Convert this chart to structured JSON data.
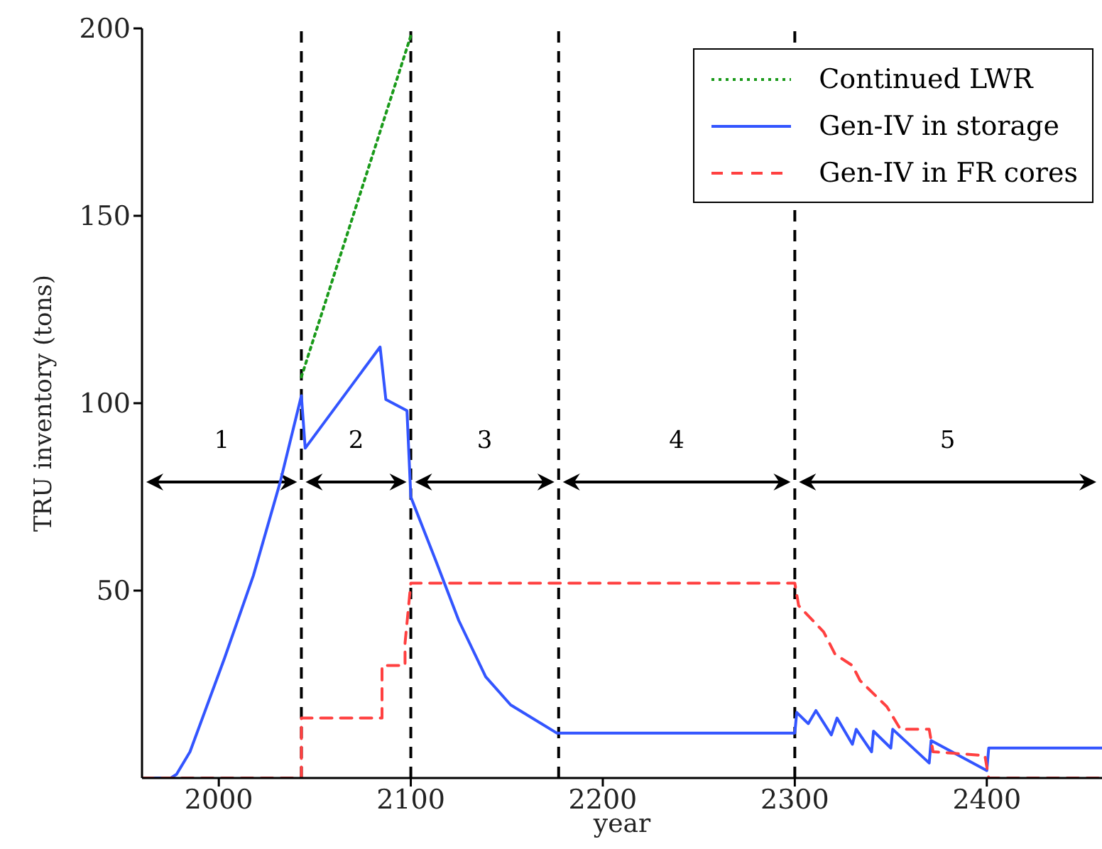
{
  "chart_data": {
    "type": "line",
    "xlabel": "year",
    "ylabel": "TRU inventory (tons)",
    "xlim": [
      1960,
      2460
    ],
    "ylim": [
      0,
      200
    ],
    "xticks": [
      2000,
      2100,
      2200,
      2300,
      2400
    ],
    "yticks": [
      50,
      100,
      150,
      200
    ],
    "grid": false,
    "legend": "top right",
    "marker": "none",
    "series": [
      {
        "name": "Continued LWR",
        "color": "#1a9a1a",
        "line_style": "dotted",
        "x": [
          2043,
          2100
        ],
        "values": [
          107,
          198
        ]
      },
      {
        "name": "Gen-IV in storage",
        "color": "#3355ff",
        "line_style": "solid",
        "x": [
          1960,
          1975,
          1978,
          1985,
          2003,
          2018,
          2032,
          2043,
          2045,
          2084,
          2087,
          2098,
          2100,
          2113,
          2125,
          2139,
          2152,
          2176,
          2300,
          2301,
          2307,
          2311,
          2319,
          2322,
          2330,
          2332,
          2340,
          2341,
          2350,
          2351,
          2370,
          2371,
          2400,
          2401,
          2460
        ],
        "values": [
          0,
          0,
          1,
          7,
          32,
          54,
          79,
          102,
          88,
          115,
          101,
          98,
          75,
          58,
          42,
          27,
          19.5,
          12,
          12,
          17.5,
          14.5,
          18,
          11.5,
          16,
          9,
          13,
          7,
          12.5,
          8,
          13,
          4,
          10,
          2,
          8,
          8
        ]
      },
      {
        "name": "Gen-IV in FR cores",
        "color": "#ff4040",
        "line_style": "dashed",
        "x": [
          1960,
          2043,
          2043,
          2085,
          2085,
          2097,
          2097,
          2100,
          2300,
          2302,
          2315,
          2321,
          2330,
          2334,
          2348,
          2355,
          2370,
          2372,
          2399,
          2401,
          2460
        ],
        "values": [
          0,
          0,
          16,
          16,
          30,
          30,
          36,
          52,
          52,
          46,
          39,
          33,
          30,
          26,
          19,
          13,
          13,
          7,
          6,
          0,
          0
        ]
      }
    ],
    "ref_lines": [
      {
        "axis": "x",
        "value": 2043,
        "color": "#000000",
        "line_style": "dashed"
      },
      {
        "axis": "x",
        "value": 2100,
        "color": "#000000",
        "line_style": "dashed"
      },
      {
        "axis": "x",
        "value": 2177,
        "color": "#000000",
        "line_style": "dashed"
      },
      {
        "axis": "x",
        "value": 2300,
        "color": "#000000",
        "line_style": "dashed"
      }
    ],
    "annotations": [
      "1",
      "2",
      "3",
      "4",
      "5"
    ]
  }
}
